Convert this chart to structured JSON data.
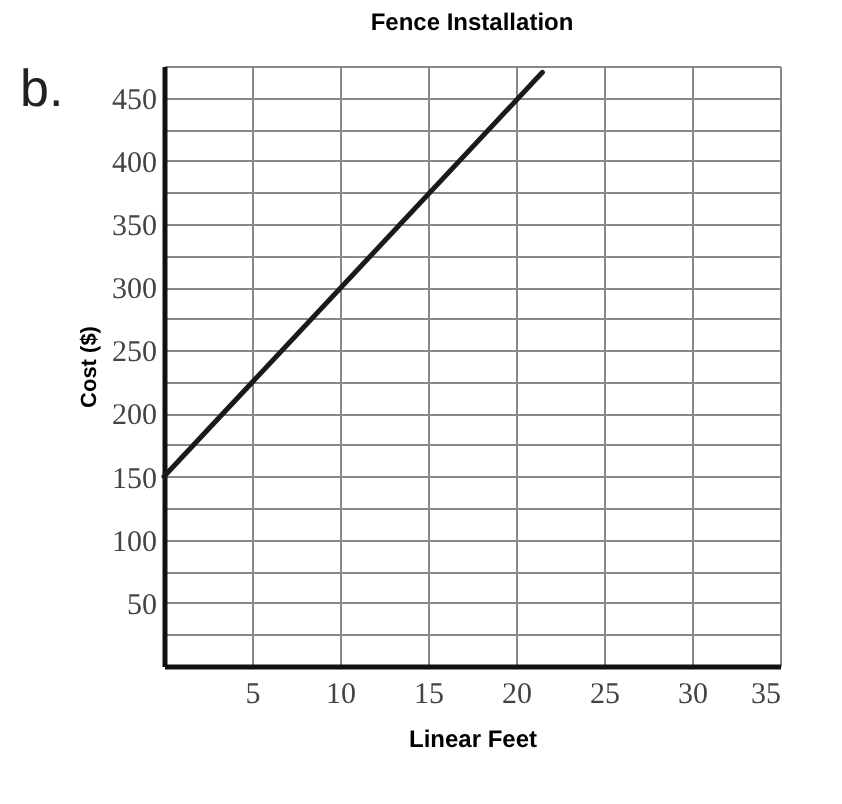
{
  "chart_data": {
    "type": "line",
    "title": "Fence Installation",
    "xlabel": "Linear Feet",
    "ylabel": "Cost ($)",
    "annotations": [
      "b."
    ],
    "x": [
      0,
      21.5
    ],
    "series": [
      {
        "color": "#1a1a1a",
        "values": [
          150,
          470
        ]
      }
    ],
    "xlim": [
      0,
      35
    ],
    "xticks": [
      5,
      10,
      15,
      20,
      25,
      30,
      35
    ],
    "ylim": [
      0,
      475
    ],
    "yticks": [
      {
        "value": 25,
        "label": null
      },
      50,
      {
        "value": 75,
        "label": null
      },
      100,
      {
        "value": 125,
        "label": null
      },
      150,
      {
        "value": 175,
        "label": null
      },
      200,
      {
        "value": 225,
        "label": null
      },
      250,
      {
        "value": 275,
        "label": null
      },
      300,
      {
        "value": 325,
        "label": null
      },
      350,
      {
        "value": 375,
        "label": null
      },
      400,
      {
        "value": 425,
        "label": null
      },
      450,
      {
        "value": 475,
        "label": null
      }
    ],
    "grid": true,
    "marker": "none",
    "line_style": "solid"
  }
}
